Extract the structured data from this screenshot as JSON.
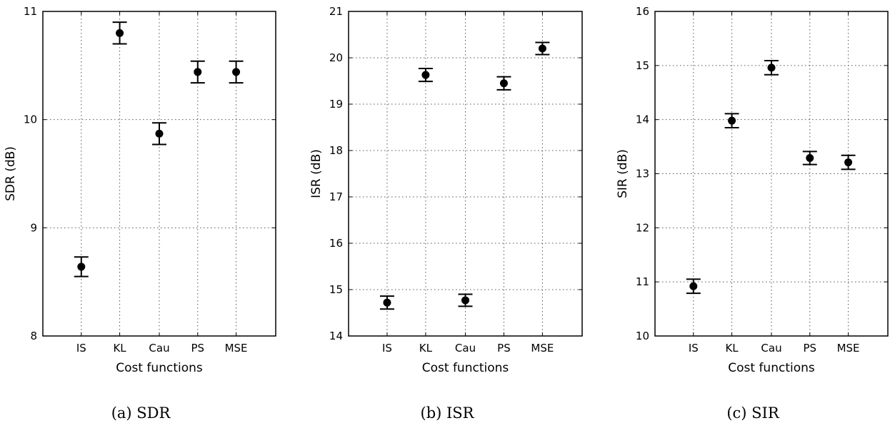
{
  "chart_data": [
    {
      "type": "scatter",
      "caption": "(a) SDR",
      "xlabel": "Cost functions",
      "ylabel": "SDR (dB)",
      "categories": [
        "IS",
        "KL",
        "Cau",
        "PS",
        "MSE"
      ],
      "ylim": [
        8,
        11
      ],
      "yticks": [
        8,
        9,
        10,
        11
      ],
      "grid": true,
      "series": [
        {
          "values": [
            8.64,
            10.8,
            9.87,
            10.44,
            10.44
          ],
          "error_low": [
            8.55,
            10.7,
            9.77,
            10.34,
            10.34
          ],
          "error_high": [
            8.73,
            10.9,
            9.97,
            10.54,
            10.54
          ]
        }
      ]
    },
    {
      "type": "scatter",
      "caption": "(b) ISR",
      "xlabel": "Cost functions",
      "ylabel": "ISR (dB)",
      "categories": [
        "IS",
        "KL",
        "Cau",
        "PS",
        "MSE"
      ],
      "ylim": [
        14,
        21
      ],
      "yticks": [
        14,
        15,
        16,
        17,
        18,
        19,
        20,
        21
      ],
      "grid": true,
      "series": [
        {
          "values": [
            14.72,
            19.63,
            14.77,
            19.45,
            20.2
          ],
          "error_low": [
            14.58,
            19.49,
            14.64,
            19.31,
            20.07
          ],
          "error_high": [
            14.86,
            19.77,
            14.9,
            19.59,
            20.33
          ]
        }
      ]
    },
    {
      "type": "scatter",
      "caption": "(c) SIR",
      "xlabel": "Cost functions",
      "ylabel": "SIR (dB)",
      "categories": [
        "IS",
        "KL",
        "Cau",
        "PS",
        "MSE"
      ],
      "ylim": [
        10,
        16
      ],
      "yticks": [
        10,
        11,
        12,
        13,
        14,
        15,
        16
      ],
      "grid": true,
      "series": [
        {
          "values": [
            10.92,
            13.98,
            14.96,
            13.29,
            13.21
          ],
          "error_low": [
            10.79,
            13.85,
            14.83,
            13.17,
            13.08
          ],
          "error_high": [
            11.05,
            14.11,
            15.09,
            13.41,
            13.34
          ]
        }
      ]
    }
  ]
}
